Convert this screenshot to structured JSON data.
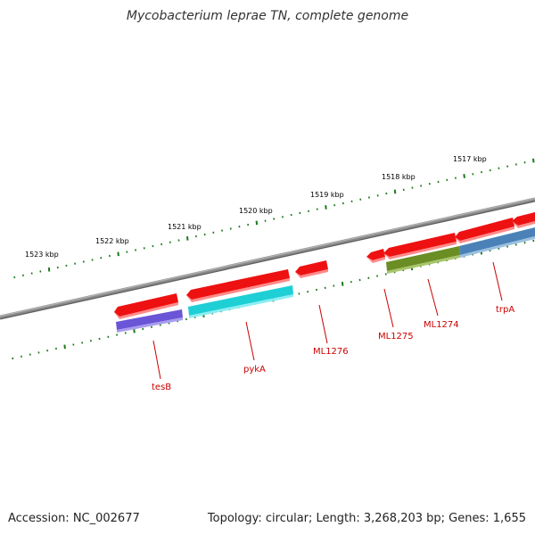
{
  "title": "Mycobacterium leprae TN, complete genome",
  "footer": {
    "accession": "Accession: NC_002677",
    "summary": "Topology: circular; Length: 3,268,203 bp; Genes: 1,655"
  },
  "colors": {
    "backbone": "#7a7a7a",
    "tick": "#1a7a1a",
    "gene_red": "#ee1111",
    "gene_label": "#cc0000",
    "tesB": "#6a55d6",
    "pykA": "#1fcfd6",
    "ML1274": "#6a8e24",
    "trpA": "#4a82b8"
  },
  "ruler_labels": [
    "1523 kbp",
    "1522 kbp",
    "1521 kbp",
    "1520 kbp",
    "1519 kbp",
    "1518 kbp",
    "1517 kbp"
  ],
  "gene_labels": [
    "tesB",
    "pykA",
    "ML1276",
    "ML1275",
    "ML1274",
    "trpA"
  ]
}
